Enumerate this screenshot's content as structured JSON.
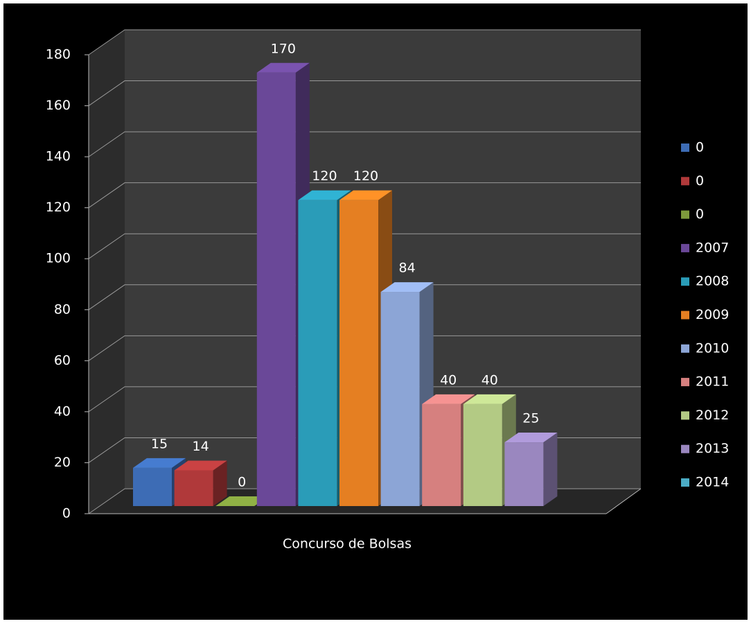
{
  "chart_data": {
    "type": "bar3d",
    "categories": [
      "Concurso de Bolsas"
    ],
    "series": [
      {
        "name": "0",
        "color": "#3d6cb5",
        "values": [
          15
        ]
      },
      {
        "name": "0",
        "color": "#b0393a",
        "values": [
          14
        ]
      },
      {
        "name": "0",
        "color": "#7d9a3c",
        "values": [
          0
        ]
      },
      {
        "name": "2007",
        "color": "#6a4898",
        "values": [
          170
        ]
      },
      {
        "name": "2008",
        "color": "#2a9cb8",
        "values": [
          120
        ]
      },
      {
        "name": "2009",
        "color": "#e57f22",
        "values": [
          120
        ]
      },
      {
        "name": "2010",
        "color": "#8ca5d6",
        "values": [
          84
        ]
      },
      {
        "name": "2011",
        "color": "#d6807f",
        "values": [
          40
        ]
      },
      {
        "name": "2012",
        "color": "#b3ca84",
        "values": [
          40
        ]
      },
      {
        "name": "2013",
        "color": "#9a87bf",
        "values": [
          25
        ]
      },
      {
        "name": "2014",
        "color": "#4bacc6",
        "values": [
          null
        ]
      }
    ],
    "ylim": [
      0,
      180
    ],
    "yticks": [
      0,
      20,
      40,
      60,
      80,
      100,
      120,
      140,
      160,
      180
    ],
    "grid": true,
    "legend": "right"
  }
}
